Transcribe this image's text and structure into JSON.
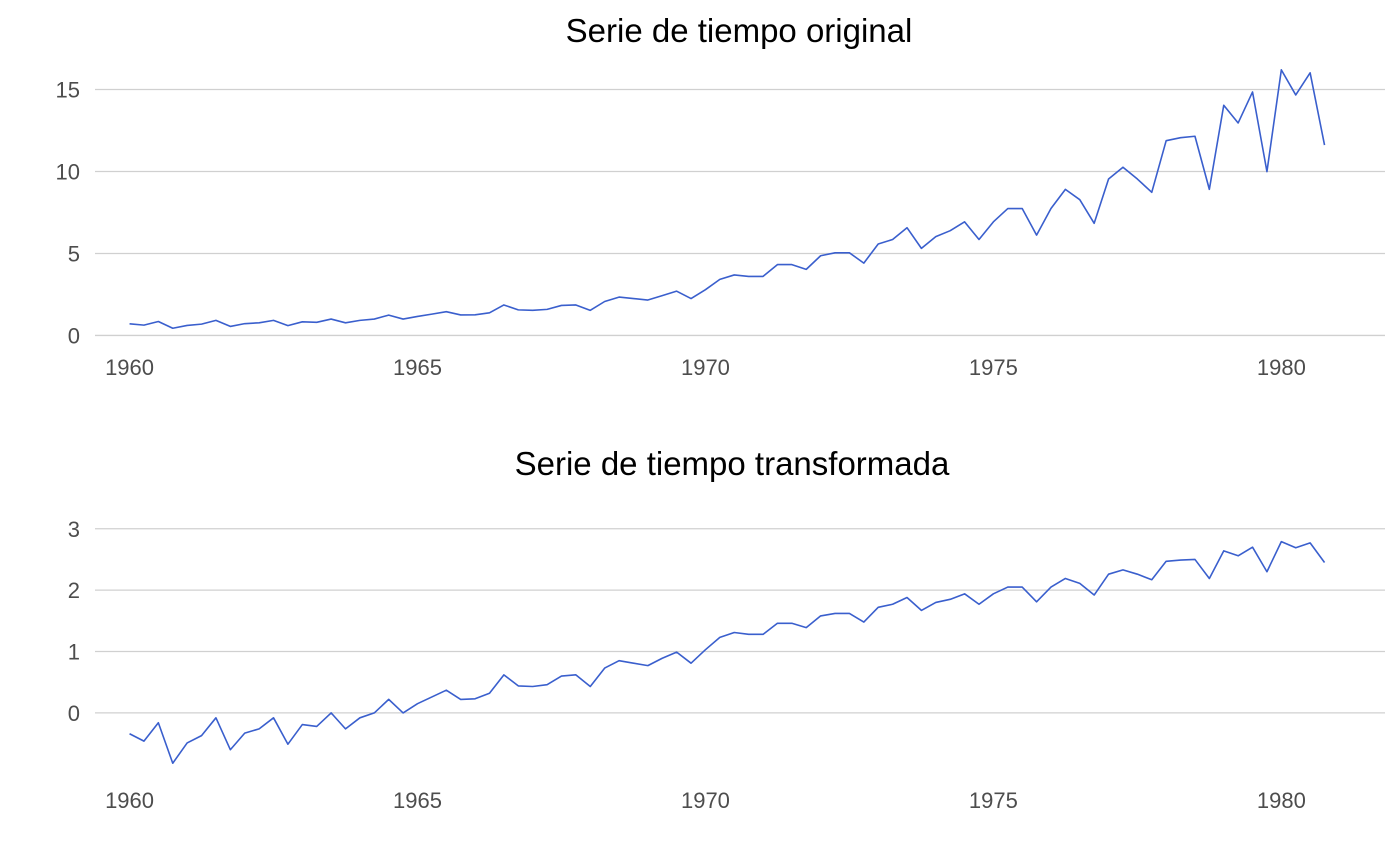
{
  "chart_data": [
    {
      "type": "line",
      "title": "Serie de tiempo original",
      "xlabel": "",
      "ylabel": "",
      "xlim": [
        1959.4,
        1981.8
      ],
      "ylim": [
        -0.4,
        16.8
      ],
      "grid": "horizontal",
      "x_ticks": [
        1960,
        1965,
        1970,
        1975,
        1980
      ],
      "y_ticks": [
        0,
        5,
        10,
        15
      ],
      "series": [
        {
          "x_start": 1960,
          "step": 0.25,
          "values": [
            0.71,
            0.63,
            0.85,
            0.44,
            0.61,
            0.69,
            0.92,
            0.55,
            0.72,
            0.77,
            0.92,
            0.6,
            0.83,
            0.8,
            1.0,
            0.77,
            0.92,
            1.0,
            1.24,
            1.0,
            1.16,
            1.3,
            1.45,
            1.25,
            1.26,
            1.38,
            1.86,
            1.56,
            1.53,
            1.59,
            1.83,
            1.86,
            1.53,
            2.07,
            2.34,
            2.25,
            2.16,
            2.43,
            2.7,
            2.25,
            2.79,
            3.42,
            3.69,
            3.6,
            3.6,
            4.32,
            4.32,
            4.03,
            4.86,
            5.04,
            5.04,
            4.41,
            5.58,
            5.85,
            6.57,
            5.31,
            6.03,
            6.39,
            6.93,
            5.85,
            6.93,
            7.74,
            7.74,
            6.12,
            7.74,
            8.91,
            8.28,
            6.84,
            9.54,
            10.26,
            9.54,
            8.73,
            11.88,
            12.06,
            12.15,
            8.91,
            14.04,
            12.96,
            14.85,
            9.99,
            16.2,
            14.67,
            16.02,
            11.61
          ],
          "color": "#3a5fcd"
        }
      ]
    },
    {
      "type": "line",
      "title": "Serie de tiempo transformada",
      "xlabel": "",
      "ylabel": "",
      "xlim": [
        1959.4,
        1981.8
      ],
      "ylim": [
        -0.8,
        3.55
      ],
      "grid": "horizontal",
      "x_ticks": [
        1960,
        1965,
        1970,
        1975,
        1980
      ],
      "y_ticks": [
        0,
        1,
        2,
        3
      ],
      "series": [
        {
          "x_start": 1960,
          "step": 0.25,
          "values": [
            -0.34,
            -0.46,
            -0.16,
            -0.82,
            -0.49,
            -0.37,
            -0.08,
            -0.6,
            -0.33,
            -0.26,
            -0.08,
            -0.51,
            -0.19,
            -0.22,
            0.0,
            -0.26,
            -0.08,
            0.0,
            0.22,
            0.0,
            0.15,
            0.26,
            0.37,
            0.22,
            0.23,
            0.32,
            0.62,
            0.44,
            0.43,
            0.46,
            0.6,
            0.62,
            0.43,
            0.73,
            0.85,
            0.81,
            0.77,
            0.89,
            0.99,
            0.81,
            1.03,
            1.23,
            1.31,
            1.28,
            1.28,
            1.46,
            1.46,
            1.39,
            1.58,
            1.62,
            1.62,
            1.48,
            1.72,
            1.77,
            1.88,
            1.67,
            1.8,
            1.85,
            1.94,
            1.77,
            1.94,
            2.05,
            2.05,
            1.81,
            2.05,
            2.19,
            2.11,
            1.92,
            2.26,
            2.33,
            2.26,
            2.17,
            2.47,
            2.49,
            2.5,
            2.19,
            2.64,
            2.56,
            2.7,
            2.3,
            2.79,
            2.69,
            2.77,
            2.45
          ],
          "color": "#3a5fcd"
        }
      ]
    }
  ]
}
